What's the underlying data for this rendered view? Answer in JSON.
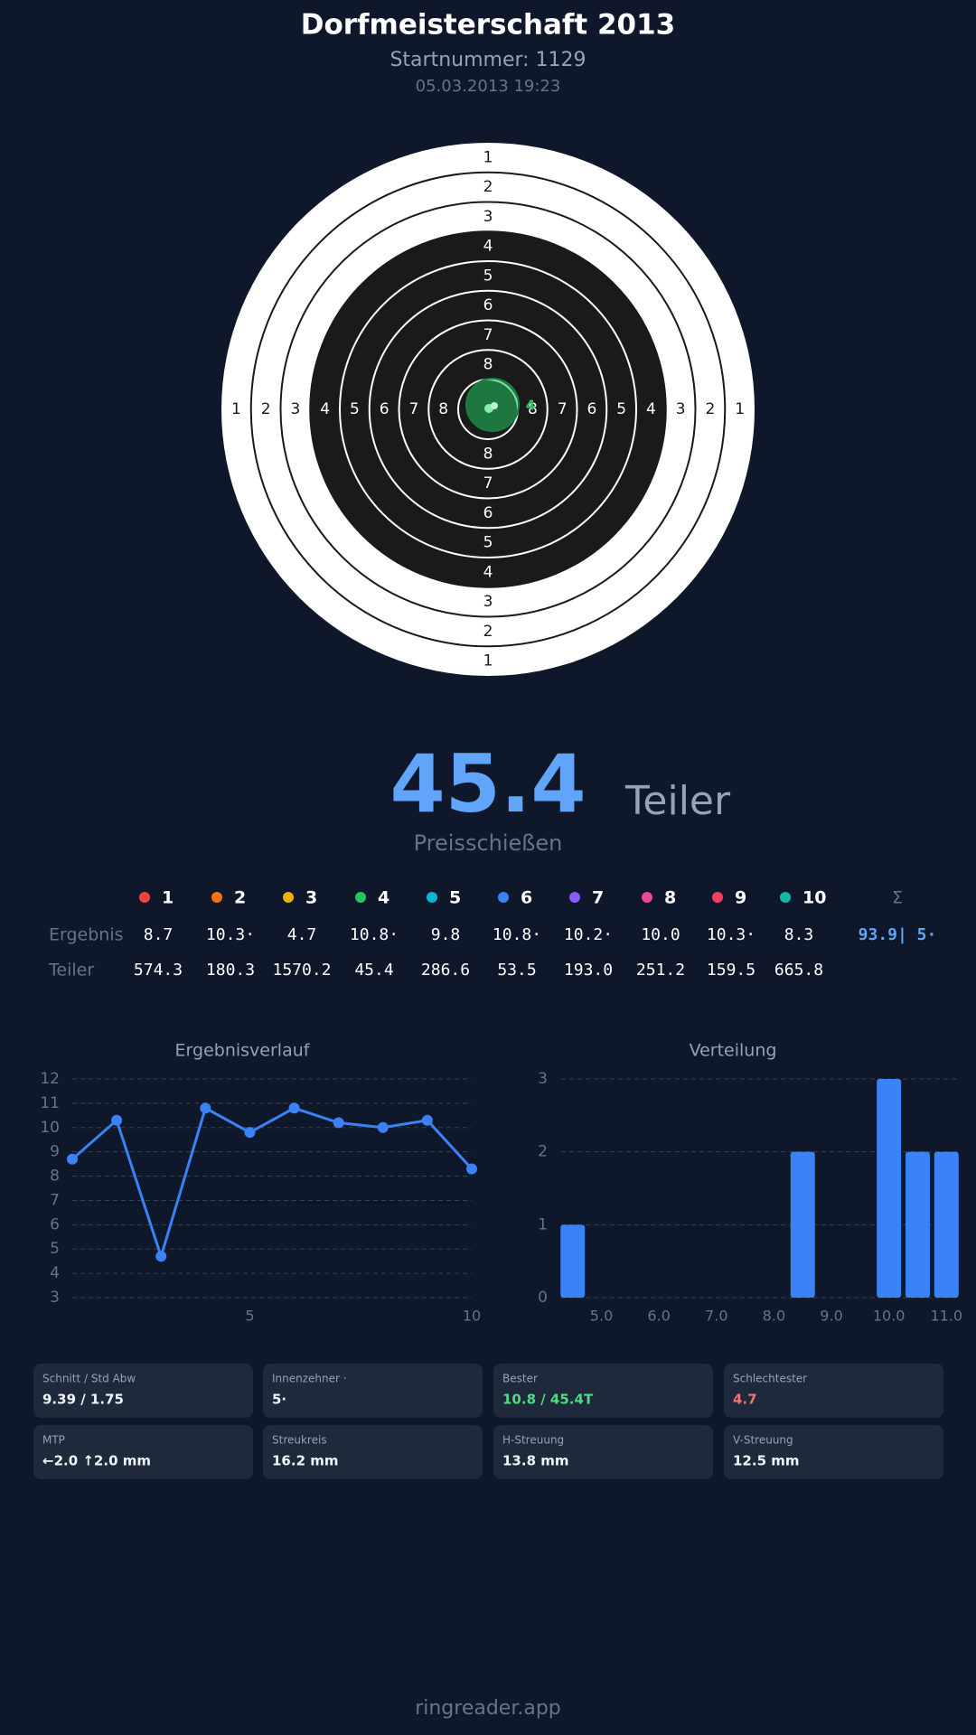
{
  "header": {
    "title": "Dorfmeisterschaft 2013",
    "start_number": "Startnummer: 1129",
    "datetime": "05.03.2013 19:23"
  },
  "target": {
    "ring_labels": [
      "1",
      "2",
      "3",
      "4",
      "5",
      "6",
      "7",
      "8"
    ],
    "shot_label": "4"
  },
  "result": {
    "value": "45.4",
    "unit": "Teiler",
    "mode": "Preisschießen"
  },
  "table": {
    "columns": [
      {
        "label": "1",
        "color": "#ef4444"
      },
      {
        "label": "2",
        "color": "#f97316"
      },
      {
        "label": "3",
        "color": "#eab308"
      },
      {
        "label": "4",
        "color": "#22c55e"
      },
      {
        "label": "5",
        "color": "#06b6d4"
      },
      {
        "label": "6",
        "color": "#3b82f6"
      },
      {
        "label": "7",
        "color": "#8b5cf6"
      },
      {
        "label": "8",
        "color": "#ec4899"
      },
      {
        "label": "9",
        "color": "#f43f5e"
      },
      {
        "label": "10",
        "color": "#14b8a6"
      },
      {
        "label": "Σ"
      }
    ],
    "rows": [
      {
        "label": "Ergebnis",
        "cells": [
          "8.7",
          "10.3·",
          "4.7",
          "10.8·",
          "9.8",
          "10.8·",
          "10.2·",
          "10.0",
          "10.3·",
          "8.3",
          "93.9| 5·"
        ]
      },
      {
        "label": "Teiler",
        "cells": [
          "574.3",
          "180.3",
          "1570.2",
          "45.4",
          "286.6",
          "53.5",
          "193.0",
          "251.2",
          "159.5",
          "665.8"
        ]
      }
    ]
  },
  "chart_data": [
    {
      "type": "line",
      "title": "Ergebnisverlauf",
      "x": [
        1,
        2,
        3,
        4,
        5,
        6,
        7,
        8,
        9,
        10
      ],
      "series": [
        {
          "color": "#3b82f6",
          "values": [
            8.7,
            10.3,
            4.7,
            10.8,
            9.8,
            10.8,
            10.2,
            10.0,
            10.3,
            8.3
          ]
        }
      ],
      "xlim": [
        1,
        10
      ],
      "xticks": [
        5,
        10
      ],
      "ylim": [
        3,
        12
      ],
      "yticks": [
        3,
        4,
        5,
        6,
        7,
        8,
        9,
        10,
        11,
        12
      ],
      "grid": true
    },
    {
      "type": "bar",
      "title": "Verteilung",
      "x": [
        4.5,
        8.5,
        10,
        10.5,
        11
      ],
      "values": [
        1,
        2,
        3,
        2,
        2
      ],
      "color": "#3b82f6",
      "xlim": [
        4.3,
        11.2
      ],
      "xticks": [
        {
          "value": 5,
          "label": "5.0"
        },
        {
          "value": 6,
          "label": "6.0"
        },
        {
          "value": 7,
          "label": "7.0"
        },
        {
          "value": 8,
          "label": "8.0"
        },
        {
          "value": 9,
          "label": "9.0"
        },
        {
          "value": 10,
          "label": "10.0"
        },
        {
          "value": 11,
          "label": "11.0"
        }
      ],
      "ylim": [
        0,
        3
      ],
      "yticks": [
        0,
        1,
        2,
        3
      ],
      "grid": true
    }
  ],
  "stats": [
    {
      "label": "Schnitt / Std Abw",
      "value": "9.39 / 1.75"
    },
    {
      "label": "Innenzehner ·",
      "value": "5·"
    },
    {
      "label": "Bester",
      "value": "10.8 / 45.4T",
      "color": "#4ade80"
    },
    {
      "label": "Schlechtester",
      "value": "4.7",
      "color": "#f87171"
    },
    {
      "label": "MTP",
      "value": "←2.0 ↑2.0 mm"
    },
    {
      "label": "Streukreis",
      "value": "16.2 mm"
    },
    {
      "label": "H-Streuung",
      "value": "13.8 mm"
    },
    {
      "label": "V-Streuung",
      "value": "12.5 mm"
    }
  ],
  "footer": "ringreader.app"
}
